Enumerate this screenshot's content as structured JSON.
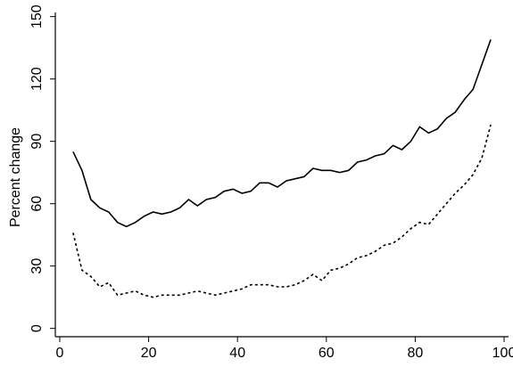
{
  "chart_data": {
    "type": "line",
    "y_label": "Percent change",
    "x": [
      3,
      5,
      7,
      9,
      11,
      13,
      15,
      17,
      19,
      21,
      23,
      25,
      27,
      29,
      31,
      33,
      35,
      37,
      39,
      41,
      43,
      45,
      47,
      49,
      51,
      53,
      55,
      57,
      59,
      61,
      63,
      65,
      67,
      69,
      71,
      73,
      75,
      77,
      79,
      81,
      83,
      85,
      87,
      89,
      91,
      93,
      95,
      97
    ],
    "series": [
      {
        "color": "#000000",
        "linestyle": "solid",
        "values": [
          85,
          76,
          62,
          58,
          56,
          51,
          49,
          51,
          54,
          56,
          55,
          56,
          58,
          62,
          59,
          62,
          63,
          66,
          67,
          65,
          66,
          70,
          70,
          68,
          71,
          72,
          73,
          77,
          76,
          76,
          75,
          76,
          80,
          81,
          83,
          84,
          88,
          86,
          90,
          97,
          94,
          96,
          101,
          104,
          110,
          115,
          127,
          139
        ]
      },
      {
        "color": "#000000",
        "linestyle": "dashed",
        "values": [
          46,
          28,
          25,
          20,
          22,
          16,
          17,
          18,
          16,
          15,
          16,
          16,
          16,
          17,
          18,
          17,
          16,
          17,
          18,
          19,
          21,
          21,
          21,
          20,
          20,
          21,
          23,
          26,
          23,
          28,
          29,
          31,
          34,
          35,
          37,
          40,
          41,
          44,
          48,
          51,
          50,
          55,
          60,
          65,
          69,
          74,
          82,
          98
        ]
      }
    ],
    "xlim": [
      -1,
      101
    ],
    "ylim": [
      -4,
      152
    ],
    "xticks": [
      0,
      20,
      40,
      60,
      80,
      100
    ],
    "yticks": [
      0,
      30,
      60,
      90,
      120,
      150
    ]
  }
}
